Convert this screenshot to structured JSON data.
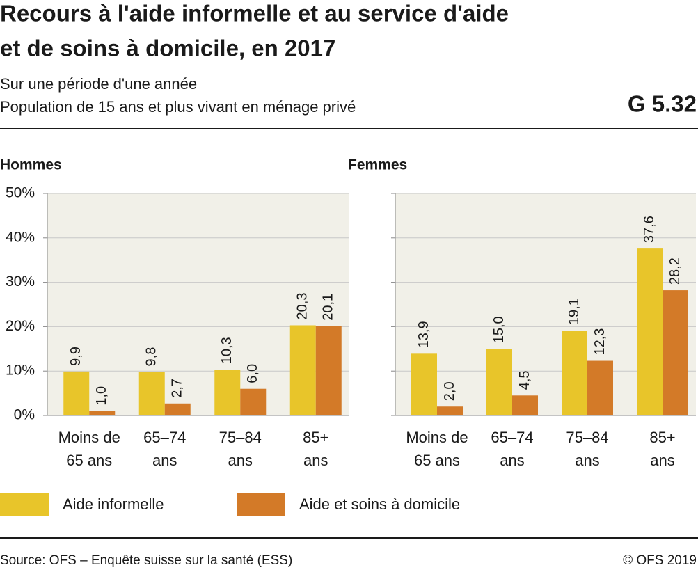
{
  "header": {
    "title_lines": [
      "Recours à l'aide informelle et au service d'aide",
      "et de soins à domicile, en 2017"
    ],
    "subtitle_lines": [
      "Sur une période d'une année",
      "Population de 15 ans et plus vivant en ménage privé"
    ],
    "code": "G 5.32"
  },
  "chart_data": [
    {
      "type": "bar",
      "title": "Hommes",
      "categories": [
        "Moins de\n65 ans",
        "65–74\nans",
        "75–84\nans",
        "85+\nans"
      ],
      "series": [
        {
          "name": "Aide informelle",
          "color": "#e8c52a",
          "values": [
            9.9,
            9.8,
            10.3,
            20.3
          ],
          "value_labels": [
            "9,9",
            "9,8",
            "10,3",
            "20,3"
          ]
        },
        {
          "name": "Aide et soins à domicile",
          "color": "#d37a28",
          "values": [
            1.0,
            2.7,
            6.0,
            20.1
          ],
          "value_labels": [
            "1,0",
            "2,7",
            "6,0",
            "20,1"
          ]
        }
      ],
      "ylim": [
        0,
        50
      ],
      "yticks": [
        {
          "value": 0,
          "label": "0%"
        },
        {
          "value": 10,
          "label": "10%"
        },
        {
          "value": 20,
          "label": "20%"
        },
        {
          "value": 30,
          "label": "30%"
        },
        {
          "value": 40,
          "label": "40%"
        },
        {
          "value": 50,
          "label": "50%"
        }
      ],
      "grid": true
    },
    {
      "type": "bar",
      "title": "Femmes",
      "categories": [
        "Moins de\n65 ans",
        "65–74\nans",
        "75–84\nans",
        "85+\nans"
      ],
      "series": [
        {
          "name": "Aide informelle",
          "color": "#e8c52a",
          "values": [
            13.9,
            15.0,
            19.1,
            37.6
          ],
          "value_labels": [
            "13,9",
            "15,0",
            "19,1",
            "37,6"
          ]
        },
        {
          "name": "Aide et soins à domicile",
          "color": "#d37a28",
          "values": [
            2.0,
            4.5,
            12.3,
            28.2
          ],
          "value_labels": [
            "2,0",
            "4,5",
            "12,3",
            "28,2"
          ]
        }
      ],
      "ylim": [
        0,
        50
      ],
      "yticks": [
        0,
        10,
        20,
        30,
        40,
        50
      ],
      "grid": true
    }
  ],
  "footer": {
    "source": "Source: OFS – Enquête suisse sur la santé (ESS)",
    "copyright": "© OFS 2019"
  }
}
